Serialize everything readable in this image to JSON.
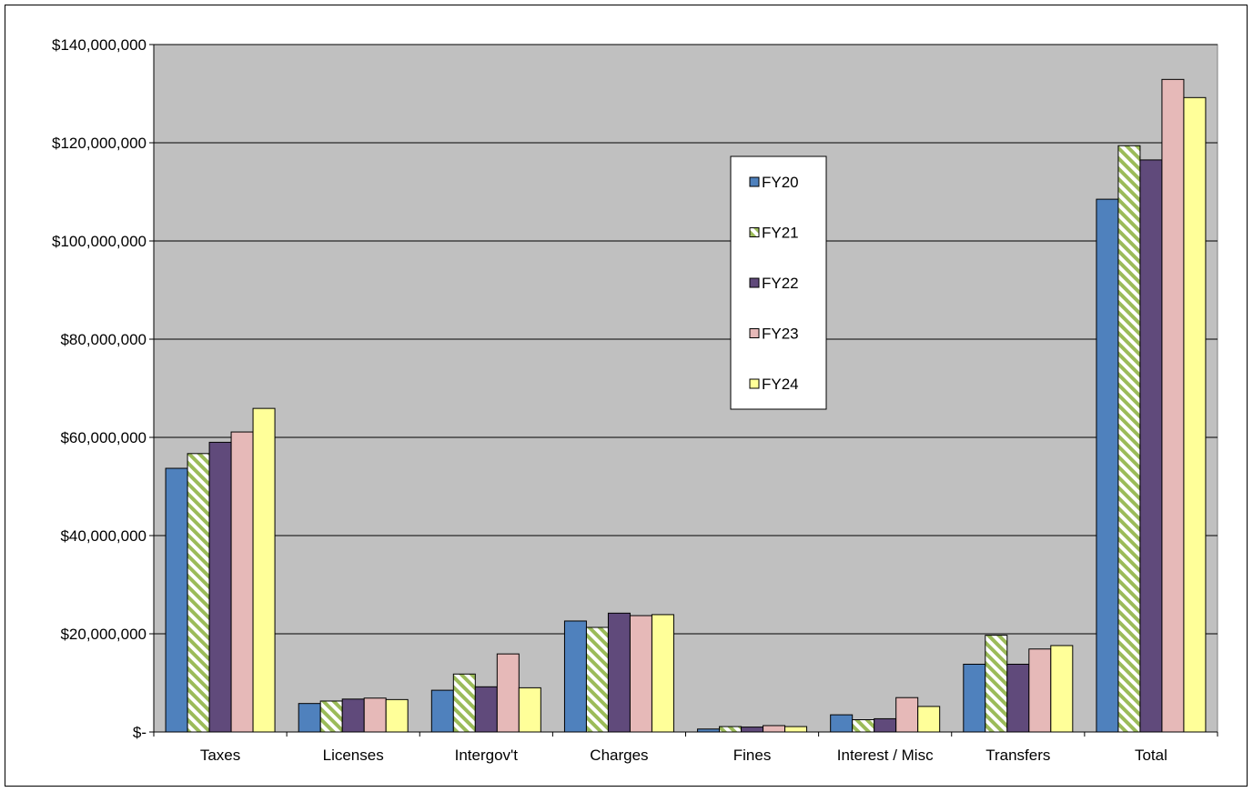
{
  "chart_data": {
    "type": "bar",
    "categories": [
      "Taxes",
      "Licenses",
      "Intergov't",
      "Charges",
      "Fines",
      "Interest / Misc",
      "Transfers",
      "Total"
    ],
    "series": [
      {
        "name": "FY20",
        "color": "#4f81bd",
        "pattern": "solid",
        "values": [
          53700000,
          5800000,
          8500000,
          22600000,
          600000,
          3500000,
          13800000,
          108500000
        ]
      },
      {
        "name": "FY21",
        "color": "#9bbb59",
        "pattern": "diagonal-stripes",
        "values": [
          56700000,
          6300000,
          11800000,
          21300000,
          1100000,
          2500000,
          19700000,
          119400000
        ]
      },
      {
        "name": "FY22",
        "color": "#604a7b",
        "pattern": "solid",
        "values": [
          59000000,
          6700000,
          9200000,
          24200000,
          1000000,
          2700000,
          13800000,
          116500000
        ]
      },
      {
        "name": "FY23",
        "color": "#e6b9b8",
        "pattern": "solid",
        "values": [
          61100000,
          6900000,
          15900000,
          23700000,
          1300000,
          7000000,
          16900000,
          132900000
        ]
      },
      {
        "name": "FY24",
        "color": "#ffff99",
        "pattern": "solid",
        "values": [
          65900000,
          6600000,
          9000000,
          23900000,
          1100000,
          5200000,
          17600000,
          129200000
        ]
      }
    ],
    "ylim": [
      0,
      140000000
    ],
    "yticks": [
      0,
      20000000,
      40000000,
      60000000,
      80000000,
      100000000,
      120000000,
      140000000
    ],
    "ytick_labels": [
      "$-",
      "$20,000,000",
      "$40,000,000",
      "$60,000,000",
      "$80,000,000",
      "$100,000,000",
      "$120,000,000",
      "$140,000,000"
    ],
    "grid": true,
    "plot_background": "#c0c0c0",
    "legend_position": "center-right"
  }
}
